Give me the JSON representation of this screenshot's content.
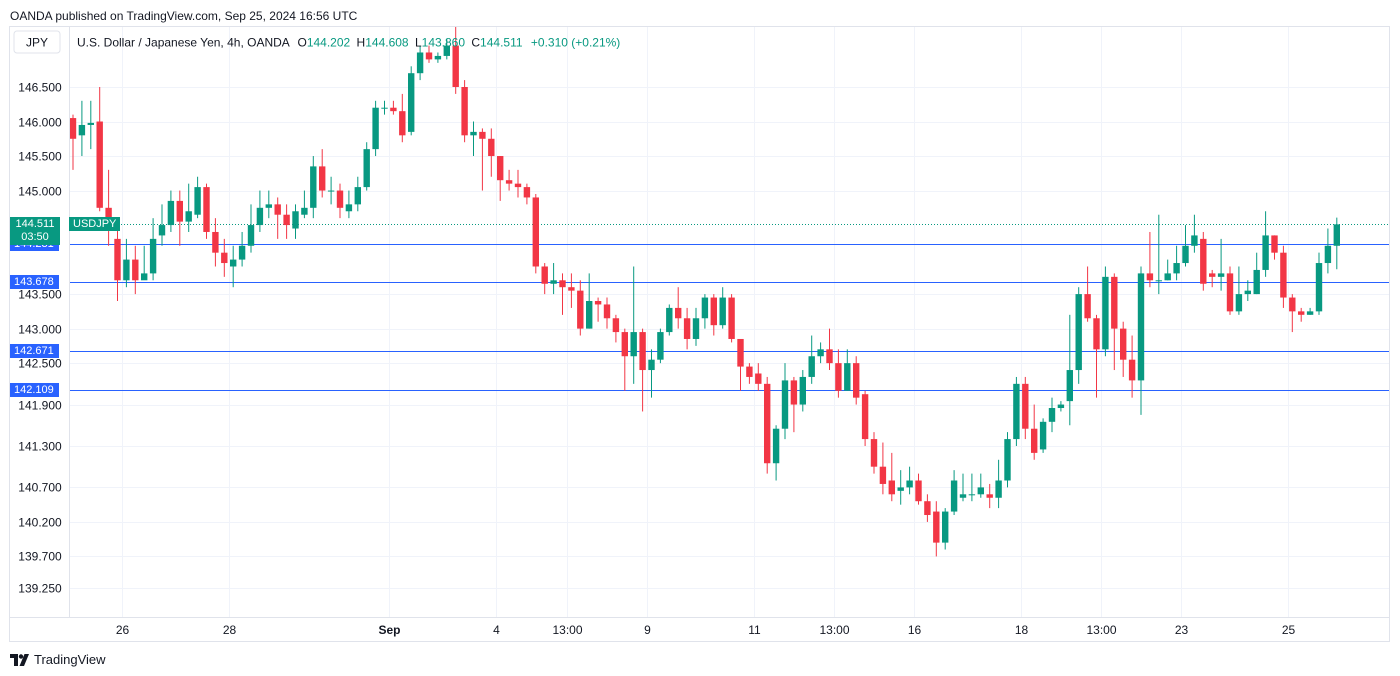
{
  "publisher_line": "OANDA published on TradingView.com, Sep 25, 2024 16:56 UTC",
  "brand": {
    "label": "TradingView",
    "icon": "tradingview-logo-icon"
  },
  "colors": {
    "up": "#089981",
    "down": "#f23645",
    "level_line": "#2962ff",
    "price_line": "#089981",
    "grid": "#f0f3fa",
    "text": "#131722"
  },
  "chart_data": {
    "type": "candlestick",
    "currency_label": "JPY",
    "legend": {
      "name": "U.S. Dollar / Japanese Yen, 4h, OANDA",
      "o_label": "O",
      "o_value": "144.202",
      "h_label": "H",
      "h_value": "144.608",
      "l_label": "L",
      "l_value": "143.860",
      "c_label": "C",
      "c_value": "144.511",
      "change": "+0.310 (+0.21%)"
    },
    "y_ticks": [
      139.25,
      139.7,
      140.2,
      140.7,
      141.3,
      141.9,
      142.5,
      143.0,
      143.5,
      145.0,
      145.5,
      146.0,
      146.5
    ],
    "y_tick_labels": [
      "139.250",
      "139.700",
      "140.200",
      "140.700",
      "141.300",
      "141.900",
      "142.500",
      "143.000",
      "143.500",
      "145.000",
      "145.500",
      "146.000",
      "146.500"
    ],
    "x_ticks": [
      {
        "label": "26",
        "index": 5.5
      },
      {
        "label": "28",
        "index": 17.5
      },
      {
        "label": "Sep",
        "index": 35.5
      },
      {
        "label": "4",
        "index": 47.5
      },
      {
        "label": "13:00",
        "index": 55.5
      },
      {
        "label": "9",
        "index": 64.5
      },
      {
        "label": "11",
        "index": 76.5
      },
      {
        "label": "13:00",
        "index": 85.5
      },
      {
        "label": "16",
        "index": 94.5
      },
      {
        "label": "18",
        "index": 106.5
      },
      {
        "label": "13:00",
        "index": 115.5
      },
      {
        "label": "23",
        "index": 124.5
      },
      {
        "label": "25",
        "index": 136.5
      }
    ],
    "horizontal_levels": [
      {
        "label": "144.231",
        "value": 144.231
      },
      {
        "label": "143.678",
        "value": 143.678
      },
      {
        "label": "142.671",
        "value": 142.671
      },
      {
        "label": "142.109",
        "value": 142.109
      }
    ],
    "last_price": {
      "label": "144.511",
      "symbol": "USDJPY",
      "countdown": "03:50",
      "value": 144.511
    },
    "candles": [
      [
        146.05,
        145.75,
        146.1,
        145.3
      ],
      [
        145.8,
        145.95,
        146.3,
        145.5
      ],
      [
        145.95,
        145.98,
        146.3,
        145.6
      ],
      [
        146.0,
        144.75,
        146.5,
        144.7
      ],
      [
        144.75,
        144.5,
        145.3,
        144.2
      ],
      [
        144.3,
        143.7,
        144.45,
        143.4
      ],
      [
        143.7,
        144.0,
        144.3,
        143.6
      ],
      [
        144.0,
        143.7,
        144.2,
        143.5
      ],
      [
        143.7,
        143.8,
        144.2,
        143.75
      ],
      [
        143.8,
        144.3,
        144.6,
        143.7
      ],
      [
        144.35,
        144.5,
        144.8,
        144.2
      ],
      [
        144.5,
        144.85,
        145.0,
        144.4
      ],
      [
        144.85,
        144.55,
        145.0,
        144.2
      ],
      [
        144.55,
        144.7,
        145.1,
        144.4
      ],
      [
        144.65,
        145.05,
        145.2,
        144.6
      ],
      [
        145.05,
        144.4,
        145.1,
        144.3
      ],
      [
        144.4,
        144.1,
        144.6,
        143.9
      ],
      [
        144.1,
        143.95,
        144.3,
        143.75
      ],
      [
        143.9,
        144.0,
        144.2,
        143.6
      ],
      [
        144.0,
        144.2,
        144.4,
        143.9
      ],
      [
        144.2,
        144.5,
        144.8,
        144.1
      ],
      [
        144.5,
        144.75,
        145.0,
        144.4
      ],
      [
        144.75,
        144.8,
        145.0,
        144.6
      ],
      [
        144.8,
        144.65,
        144.9,
        144.3
      ],
      [
        144.65,
        144.5,
        144.8,
        144.3
      ],
      [
        144.45,
        144.7,
        144.8,
        144.3
      ],
      [
        144.65,
        144.75,
        145.0,
        144.6
      ],
      [
        144.75,
        145.35,
        145.5,
        144.6
      ],
      [
        145.35,
        145.0,
        145.6,
        144.9
      ],
      [
        145.0,
        145.0,
        145.2,
        144.8
      ],
      [
        145.0,
        144.75,
        145.1,
        144.6
      ],
      [
        144.7,
        144.8,
        145.0,
        144.6
      ],
      [
        144.8,
        145.05,
        145.2,
        144.7
      ],
      [
        145.05,
        145.6,
        145.7,
        145.0
      ],
      [
        145.6,
        146.2,
        146.3,
        145.5
      ],
      [
        146.2,
        146.2,
        146.3,
        146.1
      ],
      [
        146.2,
        146.15,
        146.3,
        146.1
      ],
      [
        146.15,
        145.8,
        146.4,
        145.7
      ],
      [
        145.85,
        146.7,
        146.8,
        145.8
      ],
      [
        146.7,
        147.0,
        147.1,
        146.6
      ],
      [
        147.0,
        146.9,
        147.1,
        146.85
      ],
      [
        146.9,
        146.95,
        147.0,
        146.85
      ],
      [
        146.95,
        147.1,
        147.2,
        146.9
      ],
      [
        147.1,
        146.5,
        147.4,
        146.4
      ],
      [
        146.5,
        145.8,
        146.6,
        145.7
      ],
      [
        145.8,
        145.85,
        146.0,
        145.5
      ],
      [
        145.85,
        145.75,
        145.9,
        145.0
      ],
      [
        145.75,
        145.5,
        145.9,
        145.2
      ],
      [
        145.5,
        145.15,
        145.5,
        144.85
      ],
      [
        145.15,
        145.1,
        145.3,
        145.0
      ],
      [
        145.1,
        145.05,
        145.3,
        144.9
      ],
      [
        145.05,
        144.9,
        145.1,
        144.8
      ],
      [
        144.9,
        143.9,
        144.95,
        143.8
      ],
      [
        143.9,
        143.65,
        143.95,
        143.5
      ],
      [
        143.65,
        143.7,
        143.95,
        143.5
      ],
      [
        143.7,
        143.6,
        143.8,
        143.2
      ],
      [
        143.6,
        143.55,
        143.8,
        143.3
      ],
      [
        143.55,
        143.0,
        143.7,
        142.9
      ],
      [
        143.0,
        143.4,
        143.8,
        143.0
      ],
      [
        143.4,
        143.35,
        143.45,
        143.1
      ],
      [
        143.35,
        143.15,
        143.45,
        143.0
      ],
      [
        143.15,
        142.95,
        143.2,
        142.8
      ],
      [
        142.95,
        142.6,
        143.0,
        142.1
      ],
      [
        142.6,
        142.95,
        143.9,
        142.2
      ],
      [
        142.95,
        142.4,
        143.0,
        141.8
      ],
      [
        142.4,
        142.55,
        142.7,
        142.0
      ],
      [
        142.55,
        142.95,
        143.0,
        142.5
      ],
      [
        142.95,
        143.3,
        143.35,
        142.9
      ],
      [
        143.3,
        143.15,
        143.6,
        143.0
      ],
      [
        143.15,
        142.85,
        143.3,
        142.7
      ],
      [
        142.85,
        143.15,
        143.3,
        142.75
      ],
      [
        143.15,
        143.45,
        143.5,
        143.0
      ],
      [
        143.45,
        143.05,
        143.5,
        142.9
      ],
      [
        143.05,
        143.45,
        143.6,
        143.0
      ],
      [
        143.45,
        142.85,
        143.5,
        142.8
      ],
      [
        142.85,
        142.45,
        142.85,
        142.1
      ],
      [
        142.45,
        142.3,
        142.5,
        142.2
      ],
      [
        142.35,
        142.2,
        142.5,
        142.1
      ],
      [
        142.2,
        141.05,
        142.3,
        140.9
      ],
      [
        141.05,
        141.55,
        141.6,
        140.8
      ],
      [
        141.55,
        142.25,
        142.5,
        141.4
      ],
      [
        142.25,
        141.9,
        142.3,
        141.5
      ],
      [
        141.9,
        142.3,
        142.4,
        141.8
      ],
      [
        142.3,
        142.6,
        142.9,
        142.2
      ],
      [
        142.6,
        142.7,
        142.8,
        142.5
      ],
      [
        142.7,
        142.5,
        143.0,
        142.4
      ],
      [
        142.5,
        142.1,
        142.7,
        142.0
      ],
      [
        142.1,
        142.5,
        142.7,
        142.1
      ],
      [
        142.5,
        142.0,
        142.6,
        141.9
      ],
      [
        142.05,
        141.4,
        142.1,
        141.3
      ],
      [
        141.4,
        141.0,
        141.5,
        140.9
      ],
      [
        141.0,
        140.75,
        141.35,
        140.6
      ],
      [
        140.8,
        140.6,
        141.2,
        140.5
      ],
      [
        140.65,
        140.7,
        140.95,
        140.45
      ],
      [
        140.7,
        140.8,
        141.0,
        140.6
      ],
      [
        140.8,
        140.5,
        140.9,
        140.45
      ],
      [
        140.5,
        140.3,
        140.6,
        140.2
      ],
      [
        140.35,
        139.9,
        140.5,
        139.7
      ],
      [
        139.9,
        140.35,
        140.4,
        139.8
      ],
      [
        140.35,
        140.8,
        140.95,
        140.3
      ],
      [
        140.55,
        140.6,
        140.9,
        140.5
      ],
      [
        140.6,
        140.6,
        140.9,
        140.5
      ],
      [
        140.6,
        140.7,
        140.9,
        140.55
      ],
      [
        140.6,
        140.55,
        140.75,
        140.4
      ],
      [
        140.55,
        140.8,
        141.1,
        140.4
      ],
      [
        140.8,
        141.4,
        141.5,
        140.7
      ],
      [
        141.4,
        142.2,
        142.3,
        141.3
      ],
      [
        142.2,
        141.55,
        142.3,
        141.4
      ],
      [
        141.55,
        141.2,
        141.9,
        141.1
      ],
      [
        141.25,
        141.65,
        141.7,
        141.2
      ],
      [
        141.65,
        141.85,
        142.0,
        141.5
      ],
      [
        141.85,
        141.9,
        141.95,
        141.8
      ],
      [
        141.95,
        142.4,
        143.2,
        141.6
      ],
      [
        142.4,
        143.5,
        143.6,
        142.2
      ],
      [
        143.5,
        143.15,
        143.9,
        143.1
      ],
      [
        143.15,
        142.7,
        143.2,
        142.0
      ],
      [
        142.7,
        143.75,
        143.9,
        142.6
      ],
      [
        143.75,
        143.0,
        143.8,
        142.4
      ],
      [
        143.0,
        142.55,
        143.1,
        142.3
      ],
      [
        142.55,
        142.25,
        142.9,
        142.0
      ],
      [
        142.25,
        143.8,
        143.9,
        141.75
      ],
      [
        143.8,
        143.7,
        144.4,
        143.6
      ],
      [
        143.7,
        143.7,
        144.65,
        143.5
      ],
      [
        143.7,
        143.8,
        144.0,
        143.7
      ],
      [
        143.8,
        143.95,
        144.2,
        143.7
      ],
      [
        143.95,
        144.2,
        144.5,
        143.9
      ],
      [
        144.2,
        144.35,
        144.65,
        144.1
      ],
      [
        144.3,
        143.65,
        144.4,
        143.55
      ],
      [
        143.8,
        143.75,
        143.85,
        143.6
      ],
      [
        143.75,
        143.8,
        144.3,
        143.55
      ],
      [
        143.8,
        143.25,
        143.9,
        143.2
      ],
      [
        143.25,
        143.5,
        143.9,
        143.2
      ],
      [
        143.5,
        143.55,
        143.7,
        143.4
      ],
      [
        143.5,
        143.85,
        144.1,
        143.5
      ],
      [
        143.85,
        144.35,
        144.7,
        143.75
      ],
      [
        144.35,
        144.1,
        144.35,
        144.0
      ],
      [
        144.1,
        143.45,
        144.2,
        143.3
      ],
      [
        143.45,
        143.25,
        143.5,
        142.95
      ],
      [
        143.25,
        143.2,
        143.3,
        143.1
      ],
      [
        143.2,
        143.25,
        143.3,
        143.2
      ],
      [
        143.25,
        143.95,
        144.1,
        143.2
      ],
      [
        143.95,
        144.2,
        144.45,
        143.8
      ],
      [
        144.2,
        144.51,
        144.608,
        143.86
      ]
    ]
  }
}
